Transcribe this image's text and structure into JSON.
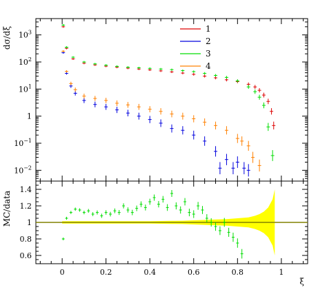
{
  "colors": {
    "series_1": "#dd0000",
    "series_2": "#0000dd",
    "series_3": "#00dd00",
    "series_4": "#ff8000",
    "ratio_band": "#ffff00",
    "ratio_line": "#808000",
    "frame": "#000000"
  },
  "chart_data": [
    {
      "type": "line",
      "panel": "top",
      "ylabel": "dσ/dξ",
      "xlabel": "",
      "y_scale": "log",
      "xlim": [
        -0.12,
        1.12
      ],
      "ylim": [
        0.004,
        4000
      ],
      "y_ticks": [
        {
          "value": 1000,
          "label_base": "10",
          "label_exp": "3"
        },
        {
          "value": 100,
          "label_base": "10",
          "label_exp": "2"
        },
        {
          "value": 10,
          "label_base": "10",
          "label_exp": "1"
        },
        {
          "value": 1,
          "label_base": "1",
          "label_exp": ""
        },
        {
          "value": 0.1,
          "label_base": "10",
          "label_exp": "−1"
        },
        {
          "value": 0.01,
          "label_base": "10",
          "label_exp": "−2"
        }
      ],
      "legend_placement": "top-right",
      "series": [
        {
          "name": "1",
          "color_key": "series_1",
          "x": [
            0.005,
            0.02,
            0.05,
            0.1,
            0.15,
            0.2,
            0.25,
            0.3,
            0.35,
            0.4,
            0.45,
            0.5,
            0.55,
            0.6,
            0.65,
            0.7,
            0.75,
            0.8,
            0.85,
            0.88,
            0.9,
            0.92,
            0.94,
            0.955,
            0.965
          ],
          "y": [
            2000,
            320,
            130,
            90,
            78,
            70,
            64,
            59,
            55,
            51,
            47,
            43,
            39,
            35,
            30,
            26,
            22,
            19,
            15,
            12,
            9,
            6,
            3.5,
            1.5,
            0.45
          ]
        },
        {
          "name": "2",
          "color_key": "series_2",
          "x": [
            0.005,
            0.02,
            0.04,
            0.06,
            0.1,
            0.15,
            0.2,
            0.25,
            0.3,
            0.35,
            0.4,
            0.45,
            0.5,
            0.55,
            0.6,
            0.65,
            0.7,
            0.72,
            0.75,
            0.78,
            0.8,
            0.83,
            0.85
          ],
          "y": [
            220,
            38,
            13,
            7,
            3.8,
            2.7,
            2.2,
            1.7,
            1.3,
            1.0,
            0.75,
            0.55,
            0.35,
            0.3,
            0.2,
            0.12,
            0.05,
            0.012,
            0.025,
            0.012,
            0.02,
            0.012,
            0.01
          ]
        },
        {
          "name": "3",
          "color_key": "series_3",
          "x": [
            0.005,
            0.02,
            0.05,
            0.1,
            0.15,
            0.2,
            0.25,
            0.3,
            0.35,
            0.4,
            0.45,
            0.5,
            0.55,
            0.6,
            0.65,
            0.7,
            0.75,
            0.8,
            0.85,
            0.88,
            0.9,
            0.92,
            0.94,
            0.96
          ],
          "y": [
            2300,
            350,
            150,
            100,
            85,
            76,
            69,
            64,
            61,
            58,
            55,
            52,
            48,
            44,
            38,
            32,
            27,
            20,
            12,
            8,
            5,
            2.5,
            0.4,
            0.035
          ]
        },
        {
          "name": "4",
          "color_key": "series_4",
          "x": [
            0.005,
            0.02,
            0.04,
            0.06,
            0.1,
            0.15,
            0.2,
            0.25,
            0.3,
            0.35,
            0.4,
            0.45,
            0.5,
            0.55,
            0.6,
            0.65,
            0.7,
            0.75,
            0.8,
            0.82,
            0.85,
            0.87,
            0.9
          ],
          "y": [
            250,
            45,
            16,
            9.5,
            5.5,
            4.5,
            3.8,
            3.0,
            2.6,
            2.2,
            1.8,
            1.5,
            1.2,
            1.0,
            0.8,
            0.6,
            0.45,
            0.3,
            0.15,
            0.12,
            0.08,
            0.03,
            0.015
          ]
        }
      ]
    },
    {
      "type": "scatter",
      "panel": "bottom",
      "ylabel": "MC/data",
      "xlabel": "ξ",
      "xlim": [
        -0.12,
        1.12
      ],
      "ylim": [
        0.5,
        1.5
      ],
      "y_ticks": [
        0.6,
        0.8,
        1,
        1.2,
        1.4
      ],
      "x_ticks": [
        0,
        0.2,
        0.4,
        0.6,
        0.8,
        1
      ],
      "reference_line": 1,
      "band": {
        "x": [
          0.0,
          0.1,
          0.2,
          0.3,
          0.4,
          0.5,
          0.55,
          0.6,
          0.65,
          0.7,
          0.75,
          0.8,
          0.85,
          0.88,
          0.9,
          0.92,
          0.94,
          0.96,
          0.97
        ],
        "half_width": [
          0.015,
          0.015,
          0.015,
          0.015,
          0.015,
          0.018,
          0.02,
          0.025,
          0.03,
          0.035,
          0.04,
          0.05,
          0.06,
          0.08,
          0.1,
          0.13,
          0.18,
          0.28,
          0.4
        ]
      },
      "series": [
        {
          "color_key": "series_3",
          "x": [
            0.005,
            0.02,
            0.04,
            0.06,
            0.08,
            0.1,
            0.12,
            0.14,
            0.16,
            0.18,
            0.2,
            0.22,
            0.24,
            0.26,
            0.28,
            0.3,
            0.32,
            0.34,
            0.36,
            0.38,
            0.4,
            0.42,
            0.44,
            0.46,
            0.48,
            0.5,
            0.52,
            0.54,
            0.56,
            0.58,
            0.6,
            0.62,
            0.64,
            0.66,
            0.68,
            0.7,
            0.72,
            0.74,
            0.76,
            0.78,
            0.8,
            0.82
          ],
          "y": [
            0.8,
            1.05,
            1.12,
            1.16,
            1.15,
            1.12,
            1.14,
            1.1,
            1.12,
            1.08,
            1.12,
            1.1,
            1.14,
            1.12,
            1.2,
            1.15,
            1.12,
            1.17,
            1.22,
            1.18,
            1.25,
            1.3,
            1.22,
            1.28,
            1.18,
            1.35,
            1.2,
            1.15,
            1.25,
            1.12,
            1.1,
            1.2,
            1.15,
            1.05,
            1.0,
            0.95,
            0.9,
            1.0,
            0.88,
            0.82,
            0.75,
            0.62
          ]
        }
      ]
    }
  ]
}
